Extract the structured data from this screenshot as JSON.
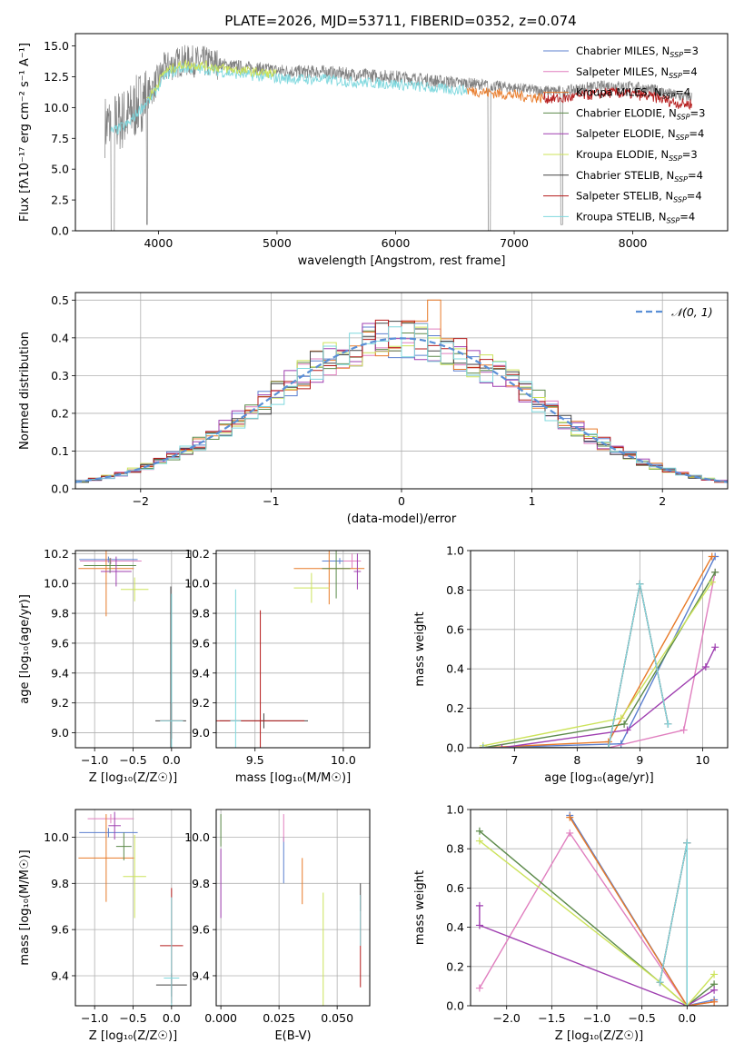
{
  "figure": {
    "title": "PLATE=2026, MJD=53711, FIBERID=0352, z=0.074"
  },
  "legend_colors": [
    "#5b7fcf",
    "#e07fbf",
    "#e87a28",
    "#5c8a4a",
    "#9f3fb0",
    "#cce35a",
    "#444444",
    "#b51c1c",
    "#7fd8de"
  ],
  "chart_data": [
    {
      "type": "line",
      "name": "spectrum",
      "xlabel": "wavelength [Angstrom, rest frame]",
      "ylabel": "Flux [fλ10⁻¹⁷ erg cm⁻² s⁻¹ A⁻¹]",
      "xlim": [
        3300,
        8800
      ],
      "ylim": [
        0,
        16
      ],
      "xticks": [
        4000,
        5000,
        6000,
        7000,
        8000
      ],
      "yticks": [
        0.0,
        2.5,
        5.0,
        7.5,
        10.0,
        12.5,
        15.0
      ],
      "legend_position": "top-right",
      "legend": [
        "Chabrier MILES, N",
        "Salpeter MILES, N",
        "Kroupa MILES, N",
        "Chabrier ELODIE, N",
        "Salpeter ELODIE, N",
        "Kroupa ELODIE, N",
        "Chabrier STELIB, N",
        "Salpeter STELIB, N",
        "Kroupa STELIB, N"
      ],
      "legend_sub": "SSP",
      "legend_nssp": [
        "=3",
        "=4",
        "=4",
        "=3",
        "=4",
        "=3",
        "=4",
        "=4",
        "=4"
      ],
      "continuum": {
        "x": [
          3550,
          3650,
          3750,
          3850,
          3950,
          4050,
          4200,
          4400,
          4600,
          4800,
          5000,
          5200,
          5400,
          5600,
          5800,
          6000,
          6200,
          6400,
          6600,
          6800,
          7000,
          7200,
          7400,
          7600,
          7800,
          8000,
          8200,
          8400,
          8500
        ],
        "y": [
          8.5,
          8.8,
          9.3,
          10.5,
          11.5,
          13.2,
          13.8,
          13.7,
          13.4,
          13.2,
          13.0,
          12.9,
          12.9,
          12.7,
          12.6,
          12.5,
          12.3,
          12.1,
          12.0,
          11.8,
          11.6,
          11.4,
          11.3,
          11.6,
          11.8,
          11.7,
          11.4,
          10.9,
          10.9
        ]
      }
    },
    {
      "type": "histogram",
      "name": "residuals",
      "xlabel": "(data-model)/error",
      "ylabel": "Normed distribution",
      "xlim": [
        -2.5,
        2.5
      ],
      "ylim": [
        0,
        0.52
      ],
      "xticks": [
        -2,
        -1,
        0,
        1,
        2
      ],
      "yticks": [
        0.0,
        0.1,
        0.2,
        0.3,
        0.4,
        0.5
      ],
      "grid": true,
      "legend": "𝒩(0, 1)",
      "legend_position": "top-right",
      "bin_width": 0.1,
      "bin_start": -2.5,
      "peak_bin": {
        "x": 0.2,
        "value": 0.5
      }
    },
    {
      "type": "scatter",
      "name": "age-vs-Z",
      "xlabel": "Z [log₁₀(Z/Z☉)]",
      "ylabel": "age  [log₁₀(age/yr)]",
      "xlim": [
        -1.25,
        0.25
      ],
      "ylim": [
        8.9,
        10.22
      ],
      "xticks": [
        -1.0,
        -0.5,
        0.0
      ],
      "yticks": [
        9.0,
        9.2,
        9.4,
        9.6,
        9.8,
        10.0,
        10.2
      ],
      "points": [
        {
          "x": -0.82,
          "y": 10.16,
          "xerr": 0.38,
          "yerr": 0.02
        },
        {
          "x": -0.79,
          "y": 10.15,
          "xerr": 0.4,
          "yerr": 0.02
        },
        {
          "x": -0.85,
          "y": 10.1,
          "xerr": 0.36,
          "yerr": 0.32
        },
        {
          "x": -0.8,
          "y": 10.12,
          "xerr": 0.34,
          "yerr": 0.05
        },
        {
          "x": -0.72,
          "y": 10.08,
          "xerr": 0.2,
          "yerr": 0.1
        },
        {
          "x": -0.48,
          "y": 9.96,
          "xerr": 0.18,
          "yerr": 0.08
        },
        {
          "x": -0.01,
          "y": 9.08,
          "xerr": 0.2,
          "yerr": 0.9
        },
        {
          "x": 0.0,
          "y": 9.08,
          "xerr": 0.15,
          "yerr": 0.12
        },
        {
          "x": 0.0,
          "y": 9.08,
          "xerr": 0.15,
          "yerr": 0.85
        }
      ]
    },
    {
      "type": "scatter",
      "name": "age-vs-mass",
      "xlabel": "mass [log₁₀(M/M☉)]",
      "ylabel": "",
      "xlim": [
        9.28,
        10.15
      ],
      "ylim": [
        8.9,
        10.22
      ],
      "xticks": [
        9.5,
        10.0
      ],
      "yticks": [
        9.0,
        9.2,
        9.4,
        9.6,
        9.8,
        10.0,
        10.2
      ],
      "points": [
        {
          "x": 9.98,
          "y": 10.15,
          "xerr": 0.1,
          "yerr": 0.02
        },
        {
          "x": 10.05,
          "y": 10.15,
          "xerr": 0.05,
          "yerr": 0.05
        },
        {
          "x": 9.92,
          "y": 10.1,
          "xerr": 0.2,
          "yerr": 0.24
        },
        {
          "x": 9.96,
          "y": 10.1,
          "xerr": 0.08,
          "yerr": 0.2
        },
        {
          "x": 10.08,
          "y": 10.08,
          "xerr": 0.02,
          "yerr": 0.12
        },
        {
          "x": 9.82,
          "y": 9.97,
          "xerr": 0.1,
          "yerr": 0.1
        },
        {
          "x": 9.55,
          "y": 9.08,
          "xerr": 0.25,
          "yerr": 0.05
        },
        {
          "x": 9.53,
          "y": 9.08,
          "xerr": 0.25,
          "yerr": 0.74
        },
        {
          "x": 9.39,
          "y": 9.08,
          "xerr": 0.03,
          "yerr": 0.88
        }
      ]
    },
    {
      "type": "line",
      "name": "mass-weight-vs-age",
      "xlabel": "age  [log₁₀(age/yr)]",
      "ylabel": "mass weight",
      "xlim": [
        6.3,
        10.4
      ],
      "ylim": [
        0,
        1.0
      ],
      "xticks": [
        7,
        8,
        9,
        10
      ],
      "yticks": [
        0.0,
        0.2,
        0.4,
        0.6,
        0.8,
        1.0
      ],
      "grid": true,
      "series": [
        {
          "x": [
            6.5,
            8.7,
            10.2
          ],
          "y": [
            0.0,
            0.02,
            0.97
          ]
        },
        {
          "x": [
            6.5,
            8.5,
            9.7,
            10.2
          ],
          "y": [
            0.0,
            0.0,
            0.09,
            0.89
          ]
        },
        {
          "x": [
            6.5,
            8.5,
            10.15
          ],
          "y": [
            0.0,
            0.03,
            0.97
          ]
        },
        {
          "x": [
            6.5,
            8.75,
            10.2
          ],
          "y": [
            0.0,
            0.12,
            0.89
          ]
        },
        {
          "x": [
            6.8,
            8.8,
            10.05,
            10.2
          ],
          "y": [
            0.0,
            0.09,
            0.41,
            0.51
          ]
        },
        {
          "x": [
            6.5,
            8.7,
            10.15
          ],
          "y": [
            0.01,
            0.15,
            0.84
          ]
        },
        {
          "x": [
            6.5,
            8.5,
            9.0,
            9.45
          ],
          "y": [
            0.0,
            0.0,
            0.83,
            0.12
          ]
        },
        {
          "x": [
            6.5,
            8.5,
            9.0,
            9.45
          ],
          "y": [
            0.0,
            0.0,
            0.83,
            0.12
          ]
        },
        {
          "x": [
            6.5,
            8.5,
            9.0,
            9.45
          ],
          "y": [
            0.0,
            0.0,
            0.83,
            0.12
          ]
        }
      ]
    },
    {
      "type": "scatter",
      "name": "mass-vs-Z",
      "xlabel": "Z [log₁₀(Z/Z☉)]",
      "ylabel": "mass [log₁₀(M/M☉)]",
      "xlim": [
        -1.25,
        0.25
      ],
      "ylim": [
        9.27,
        10.12
      ],
      "xticks": [
        -1.0,
        -0.5,
        0.0
      ],
      "yticks": [
        9.4,
        9.6,
        9.8,
        10.0
      ],
      "points": [
        {
          "x": -0.82,
          "y": 10.02,
          "xerr": 0.38,
          "yerr": 0.02
        },
        {
          "x": -0.79,
          "y": 10.08,
          "xerr": 0.3,
          "yerr": 0.02
        },
        {
          "x": -0.85,
          "y": 9.91,
          "xerr": 0.36,
          "yerr": 0.19
        },
        {
          "x": -0.62,
          "y": 9.96,
          "xerr": 0.1,
          "yerr": 0.06
        },
        {
          "x": -0.74,
          "y": 10.05,
          "xerr": 0.08,
          "yerr": 0.06
        },
        {
          "x": -0.48,
          "y": 9.83,
          "xerr": 0.15,
          "yerr": 0.18
        },
        {
          "x": 0.0,
          "y": 9.36,
          "xerr": 0.2,
          "yerr": 0.05
        },
        {
          "x": 0.0,
          "y": 9.53,
          "xerr": 0.15,
          "yerr": 0.25
        },
        {
          "x": 0.0,
          "y": 9.39,
          "xerr": 0.1,
          "yerr": 0.35
        }
      ]
    },
    {
      "type": "scatter",
      "name": "mass-vs-ebv",
      "xlabel": "E(B-V)",
      "ylabel": "",
      "xlim": [
        -0.002,
        0.064
      ],
      "ylim": [
        9.27,
        10.12
      ],
      "xticks": [
        0.0,
        0.025,
        0.05
      ],
      "yticks": [
        9.4,
        9.6,
        9.8,
        10.0
      ],
      "points": [
        {
          "x": 0.027,
          "y": 9.9,
          "yerr": 0.1
        },
        {
          "x": 0.027,
          "y": 10.04,
          "yerr": 0.06
        },
        {
          "x": 0.035,
          "y": 9.81,
          "yerr": 0.1
        },
        {
          "x": 0.0,
          "y": 10.03,
          "yerr": 0.07
        },
        {
          "x": 0.0,
          "y": 9.8,
          "yerr": 0.15
        },
        {
          "x": 0.044,
          "y": 9.49,
          "yerr": 0.27
        },
        {
          "x": 0.06,
          "y": 9.74,
          "yerr": 0.06
        },
        {
          "x": 0.06,
          "y": 9.55,
          "yerr": 0.2
        },
        {
          "x": 0.06,
          "y": 9.64,
          "yerr": 0.11
        }
      ]
    },
    {
      "type": "line",
      "name": "mass-weight-vs-Z",
      "xlabel": "Z [log₁₀(Z/Z☉)]",
      "ylabel": "mass weight",
      "xlim": [
        -2.4,
        0.45
      ],
      "ylim": [
        0,
        1.0
      ],
      "xticks": [
        -2.0,
        -1.5,
        -1.0,
        -0.5,
        0.0
      ],
      "yticks": [
        0.0,
        0.2,
        0.4,
        0.6,
        0.8,
        1.0
      ],
      "grid": true,
      "series": [
        {
          "x": [
            -1.3,
            0.0,
            0.3
          ],
          "y": [
            0.97,
            0.0,
            0.03
          ]
        },
        {
          "x": [
            -2.3,
            -1.3,
            0.0,
            0.3
          ],
          "y": [
            0.09,
            0.88,
            0.0,
            0.02
          ]
        },
        {
          "x": [
            -1.3,
            0.0,
            0.3
          ],
          "y": [
            0.96,
            0.0,
            0.02
          ]
        },
        {
          "x": [
            -2.3,
            -0.3,
            0.0,
            0.3
          ],
          "y": [
            0.89,
            0.12,
            0.0,
            0.11
          ]
        },
        {
          "x": [
            -2.3,
            -2.3,
            0.0,
            0.3
          ],
          "y": [
            0.51,
            0.41,
            0.0,
            0.08
          ]
        },
        {
          "x": [
            -2.3,
            -0.3,
            0.0,
            0.3
          ],
          "y": [
            0.84,
            0.12,
            0.0,
            0.16
          ]
        },
        {
          "x": [
            -0.3,
            0.0,
            0.0
          ],
          "y": [
            0.12,
            0.83,
            0.0
          ]
        },
        {
          "x": [
            -0.3,
            0.0,
            0.0
          ],
          "y": [
            0.12,
            0.83,
            0.0
          ]
        },
        {
          "x": [
            -0.3,
            0.0,
            0.0
          ],
          "y": [
            0.12,
            0.83,
            0.0
          ]
        }
      ]
    }
  ]
}
